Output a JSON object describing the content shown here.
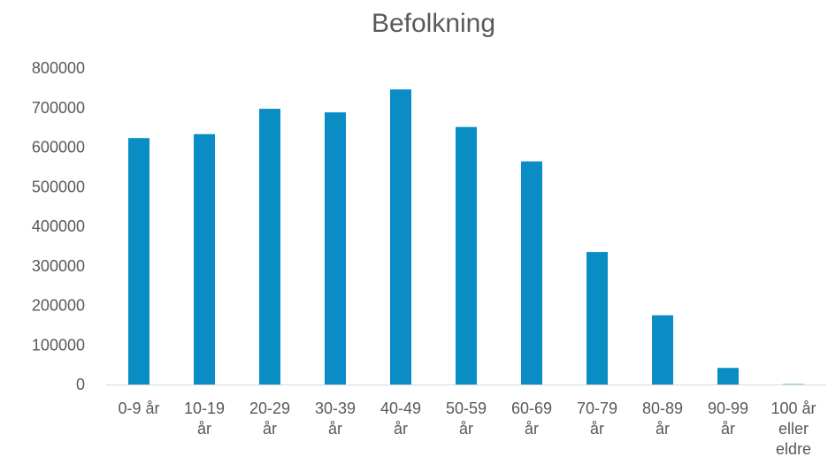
{
  "chart_data": {
    "type": "bar",
    "title": "Befolkning",
    "xlabel": "",
    "ylabel": "",
    "categories": [
      "0-9 år",
      "10-19 år",
      "20-29 år",
      "30-39 år",
      "40-49 år",
      "50-59 år",
      "60-69 år",
      "70-79 år",
      "80-89 år",
      "90-99 år",
      "100 år eller eldre"
    ],
    "category_lines": [
      [
        "0-9 år"
      ],
      [
        "10-19",
        "år"
      ],
      [
        "20-29",
        "år"
      ],
      [
        "30-39",
        "år"
      ],
      [
        "40-49",
        "år"
      ],
      [
        "50-59",
        "år"
      ],
      [
        "60-69",
        "år"
      ],
      [
        "70-79",
        "år"
      ],
      [
        "80-89",
        "år"
      ],
      [
        "90-99",
        "år"
      ],
      [
        "100 år",
        "eller",
        "eldre"
      ]
    ],
    "values": [
      623000,
      633000,
      697000,
      688000,
      746000,
      651000,
      564000,
      335000,
      175000,
      42000,
      1000
    ],
    "ylim": [
      0,
      800000
    ],
    "yticks": [
      0,
      100000,
      200000,
      300000,
      400000,
      500000,
      600000,
      700000,
      800000
    ],
    "ytick_labels": [
      "0",
      "100000",
      "200000",
      "300000",
      "400000",
      "500000",
      "600000",
      "700000",
      "800000"
    ],
    "grid": false,
    "legend": "none",
    "bar_color": "#0a8dc4",
    "axis_color": "#d9d9d9",
    "text_color": "#595959"
  }
}
